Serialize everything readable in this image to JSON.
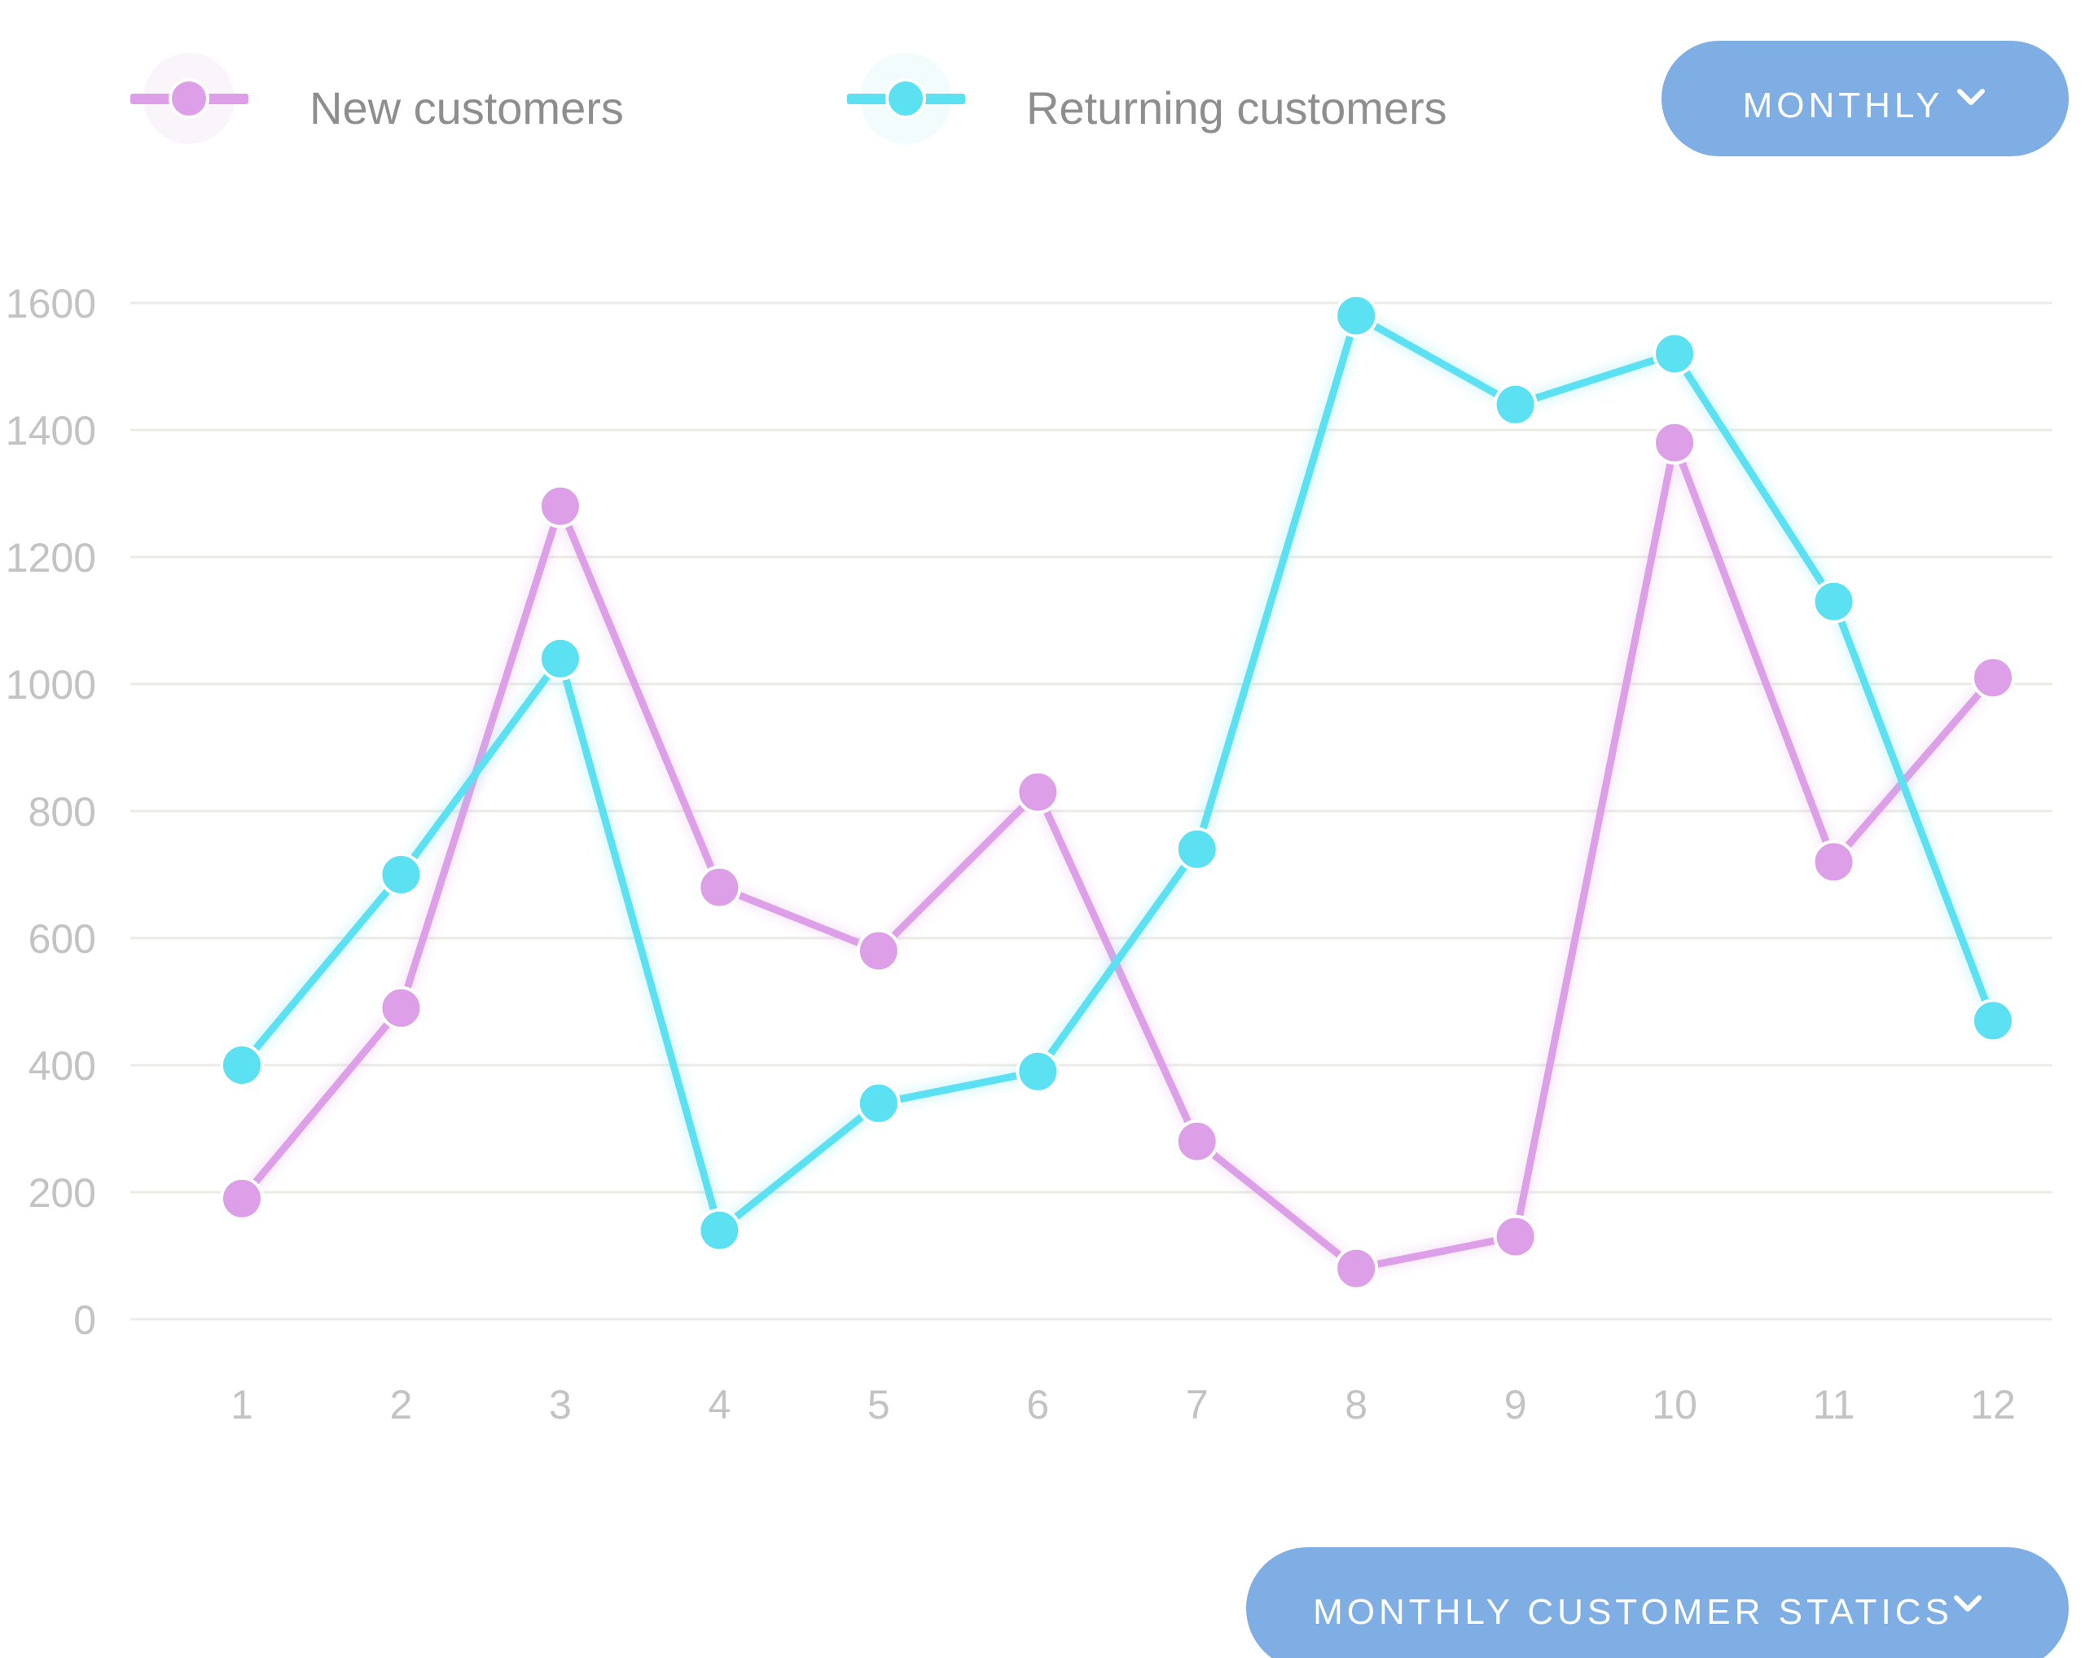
{
  "filter_button": {
    "label": "MONTHLY",
    "icon": "chevron-down-icon"
  },
  "footer_button": {
    "label": "MONTHLY CUSTOMER STATICS",
    "icon": "chevron-down-icon"
  },
  "colors": {
    "new_customers": "#dda0e8",
    "returning_customers": "#5ce1f2",
    "button": "#7eaee4",
    "grid": "#ecece4",
    "tick_text": "#c3c3c3",
    "legend_text": "#8e8e8e"
  },
  "chart_data": {
    "type": "line",
    "title": "",
    "xlabel": "",
    "ylabel": "",
    "categories": [
      "1",
      "2",
      "3",
      "4",
      "5",
      "6",
      "7",
      "8",
      "9",
      "10",
      "11",
      "12"
    ],
    "y_ticks": [
      "0",
      "200",
      "400",
      "600",
      "800",
      "1000",
      "1200",
      "1400",
      "1600"
    ],
    "ylim": [
      0,
      1600
    ],
    "grid": true,
    "legend_position": "top-left",
    "series": [
      {
        "name": "New customers",
        "color": "#dda0e8",
        "values": [
          190,
          490,
          1280,
          680,
          580,
          830,
          280,
          80,
          130,
          1380,
          720,
          1010
        ]
      },
      {
        "name": "Returning customers",
        "color": "#5ce1f2",
        "values": [
          400,
          700,
          1040,
          140,
          340,
          390,
          740,
          1580,
          1440,
          1520,
          1130,
          470
        ]
      }
    ]
  }
}
